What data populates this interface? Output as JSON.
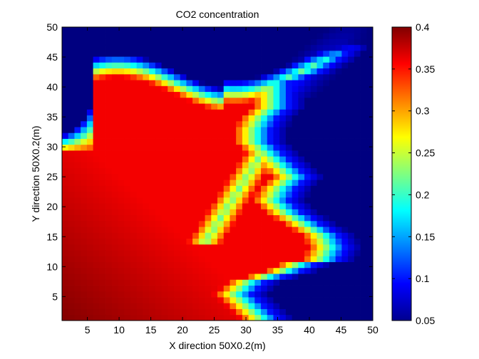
{
  "chart_data": {
    "type": "heatmap",
    "title": "CO2 concentration",
    "xlabel": "X direction 50X0.2(m)",
    "ylabel": "Y direction 50X0.2(m)",
    "xlim": [
      1,
      50
    ],
    "ylim": [
      1,
      50
    ],
    "xticks": [
      5,
      10,
      15,
      20,
      25,
      30,
      35,
      40,
      45,
      50
    ],
    "yticks": [
      5,
      10,
      15,
      20,
      25,
      30,
      35,
      40,
      45,
      50
    ],
    "colorbar": {
      "colormap": "jet",
      "range": [
        0.05,
        0.4
      ],
      "ticks": [
        0.05,
        0.1,
        0.15,
        0.2,
        0.25,
        0.3,
        0.35,
        0.4
      ]
    },
    "grid": false,
    "front_boundary": {
      "description_y": [
        1,
        3,
        5,
        7,
        9,
        10,
        11,
        13,
        15,
        17,
        19,
        21,
        23,
        25,
        27,
        29,
        31,
        33,
        35,
        37,
        39,
        41,
        43,
        45,
        47,
        49,
        50
      ],
      "description_x": [
        35,
        33,
        31,
        33,
        39,
        41,
        45,
        46,
        45,
        42,
        39,
        37,
        38,
        40,
        38,
        36,
        34,
        34,
        35,
        37,
        37,
        37,
        42,
        45,
        47,
        49,
        50
      ]
    }
  }
}
